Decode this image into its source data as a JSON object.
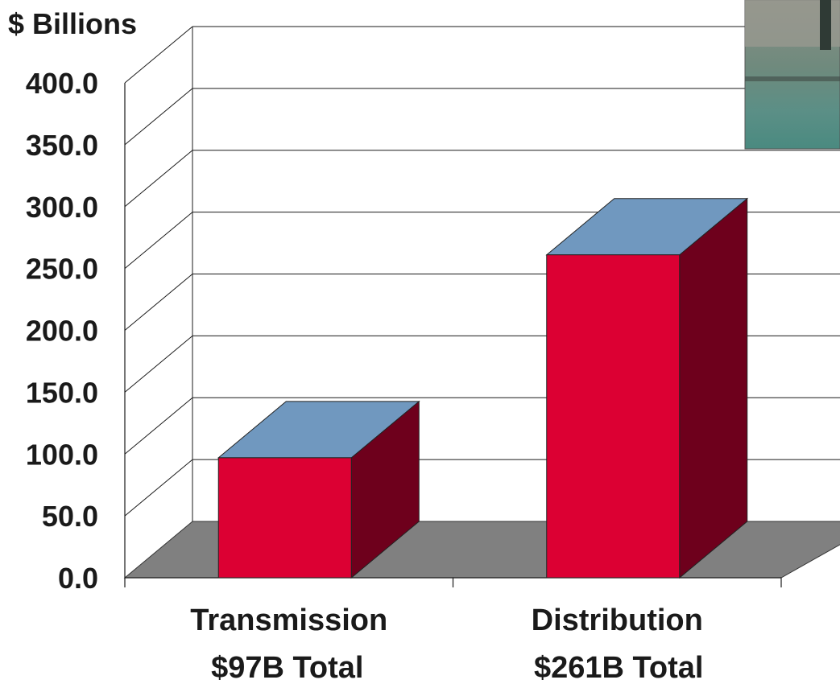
{
  "chart_data": {
    "type": "bar",
    "ylabel": "$ Billions",
    "ylim": [
      0,
      400
    ],
    "ytick_labels": [
      "0.0",
      "50.0",
      "100.0",
      "150.0",
      "200.0",
      "250.0",
      "300.0",
      "350.0",
      "400.0"
    ],
    "categories": [
      "Transmission",
      "Distribution"
    ],
    "category_sublabels": [
      "$97B Total",
      "$261B Total"
    ],
    "values": [
      97,
      261
    ],
    "grid": true,
    "three_d": true,
    "colors": {
      "bar_front": "#dc0033",
      "bar_side": "#6e001c",
      "bar_top": "#7098bf",
      "floor": "#808080",
      "grid": "#1a1a1a"
    }
  }
}
